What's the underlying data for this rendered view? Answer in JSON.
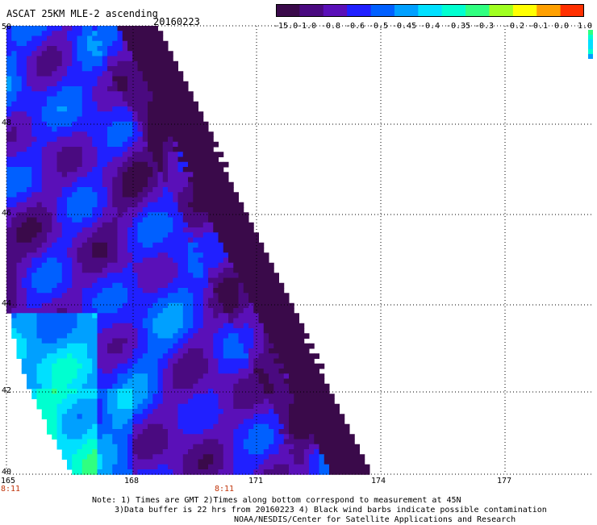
{
  "header": {
    "title": "ASCAT 25KM MLE-2 ascending",
    "date": "20160223"
  },
  "colorbar": {
    "labels": [
      "-15.0",
      "-1.0",
      "-0.8",
      "-0.6",
      "-0.5",
      "-0.45",
      "-0.4",
      "-0.35",
      "-0.3",
      "-0.2",
      "-0.1",
      "0.0",
      "1.0"
    ],
    "colors": [
      "#3a0a4a",
      "#4a0a80",
      "#5a10b8",
      "#2020ff",
      "#0060ff",
      "#00a0ff",
      "#00e0ff",
      "#00ffd0",
      "#30ff80",
      "#a0ff20",
      "#ffff00",
      "#ffa000",
      "#ff3000"
    ]
  },
  "map": {
    "lat_labels": [
      "50",
      "48",
      "46",
      "44",
      "42",
      "40"
    ],
    "lon_labels": [
      "165",
      "168",
      "171",
      "174",
      "177"
    ],
    "time_labels": [
      "8:11",
      "8:11"
    ]
  },
  "footer": {
    "line1": "Note: 1) Times are GMT 2)Times along bottom correspond to measurement at 45N",
    "line2": "3)Data buffer is 22 hrs from 20160223 4) Black wind barbs indicate possible contamination",
    "line3": "NOAA/NESDIS/Center for Satellite Applications and Research"
  }
}
